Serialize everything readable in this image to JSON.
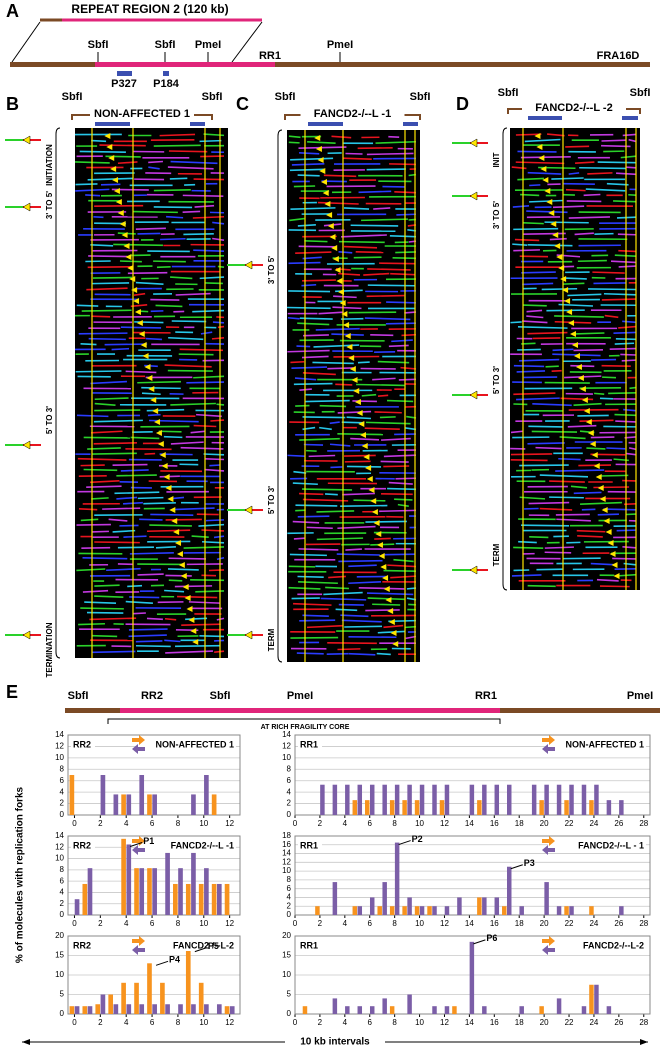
{
  "figure": {
    "panel_a": {
      "label": "A",
      "region": "REPEAT REGION 2 (120 kb)",
      "sites": [
        "SbfI",
        "SbfI",
        "PmeI",
        "RR1",
        "PmeI",
        "FRA16D"
      ],
      "probes": [
        "P327",
        "P184"
      ]
    },
    "panels": [
      {
        "label": "B",
        "title": "NON-AFFECTED 1",
        "sites": [
          "SbfI",
          "SbfI"
        ],
        "zones": [
          "INITIATION",
          "3' TO 5'",
          "5' TO 3'",
          "TERMINATION"
        ]
      },
      {
        "label": "C",
        "title": "FANCD2-/--L -1",
        "sites": [
          "SbfI",
          "SbfI"
        ],
        "zones": [
          "3' TO 5'",
          "5' TO 3'",
          "TERM"
        ]
      },
      {
        "label": "D",
        "title": "FANCD2-/--L -2",
        "sites": [
          "SbfI",
          "SbfI"
        ],
        "zones": [
          "INIT",
          "3' TO 5'",
          "5' TO 3'",
          "TERM"
        ]
      }
    ],
    "panel_e": {
      "label": "E",
      "map": [
        "SbfI",
        "RR2",
        "SbfI",
        "PmeI",
        "RR1",
        "PmeI"
      ],
      "core": "AT RICH FRAGILITY CORE",
      "y_label": "% of molecules with replication forks",
      "x_label": "10 kb intervals"
    }
  },
  "chart_data": [
    {
      "type": "bar",
      "region": "RR2",
      "title": "NON-AFFECTED 1",
      "x": [
        0,
        1,
        2,
        3,
        4,
        5,
        6,
        7,
        8,
        9,
        10,
        11,
        12
      ],
      "xlim": [
        -0.5,
        12.8
      ],
      "xticks": [
        0,
        2,
        4,
        6,
        8,
        10,
        12
      ],
      "ylim": [
        0,
        14
      ],
      "yticks": [
        0,
        2,
        4,
        6,
        8,
        10,
        12,
        14
      ],
      "grid": true,
      "series": [
        {
          "color": "#f7931e",
          "values": [
            7,
            0,
            0,
            0,
            3.6,
            0,
            3.6,
            0,
            0,
            0,
            0,
            3.6,
            0
          ]
        },
        {
          "color": "#7b5ea7",
          "values": [
            0,
            0,
            7,
            3.6,
            3.6,
            7,
            3.6,
            0,
            0,
            3.6,
            7,
            0,
            0
          ]
        }
      ],
      "annotations": []
    },
    {
      "type": "bar",
      "region": "RR1",
      "title": "NON-AFFECTED 1",
      "x": [
        1,
        2,
        3,
        4,
        5,
        6,
        7,
        8,
        9,
        10,
        11,
        12,
        13,
        14,
        15,
        16,
        17,
        18,
        19,
        20,
        21,
        22,
        23,
        24,
        25,
        26,
        27
      ],
      "xlim": [
        0,
        28.5
      ],
      "xticks": [
        0,
        2,
        4,
        6,
        8,
        10,
        12,
        14,
        16,
        18,
        20,
        22,
        24,
        26,
        28
      ],
      "ylim": [
        0,
        14
      ],
      "yticks": [
        0,
        2,
        4,
        6,
        8,
        10,
        12,
        14
      ],
      "grid": true,
      "series": [
        {
          "color": "#f7931e",
          "values": [
            0,
            0,
            0,
            0,
            2.6,
            2.6,
            0,
            2.6,
            2.6,
            2.6,
            0,
            2.6,
            0,
            0,
            2.6,
            0,
            0,
            0,
            0,
            2.6,
            0,
            2.6,
            0,
            2.6,
            0,
            0,
            0
          ]
        },
        {
          "color": "#7b5ea7",
          "values": [
            0,
            5.3,
            5.3,
            5.3,
            5.3,
            5.3,
            5.3,
            5.3,
            5.3,
            5.3,
            5.3,
            5.3,
            0,
            5.3,
            5.3,
            5.3,
            5.3,
            0,
            5.3,
            5.3,
            5.3,
            5.3,
            5.3,
            5.3,
            2.6,
            2.6,
            0
          ]
        }
      ],
      "annotations": []
    },
    {
      "type": "bar",
      "region": "RR2",
      "title": "FANCD2-/--L -1",
      "x": [
        0,
        1,
        2,
        3,
        4,
        5,
        6,
        7,
        8,
        9,
        10,
        11,
        12
      ],
      "xlim": [
        -0.5,
        12.8
      ],
      "xticks": [
        0,
        2,
        4,
        6,
        8,
        10,
        12
      ],
      "ylim": [
        0,
        14
      ],
      "yticks": [
        0,
        2,
        4,
        6,
        8,
        10,
        12,
        14
      ],
      "grid": true,
      "series": [
        {
          "color": "#f7931e",
          "values": [
            0,
            5.5,
            0,
            0,
            13.5,
            8.3,
            8.3,
            0,
            5.5,
            5.5,
            5.5,
            5.5,
            5.5
          ]
        },
        {
          "color": "#7b5ea7",
          "values": [
            2.8,
            8.3,
            0,
            0,
            12.5,
            8.3,
            8.3,
            11,
            8.3,
            11,
            8.3,
            5.5,
            0
          ]
        }
      ],
      "annotations": [
        {
          "text": "P1",
          "x": 4,
          "y": 12.5
        }
      ]
    },
    {
      "type": "bar",
      "region": "RR1",
      "title": "FANCD2-/--L - 1",
      "x": [
        1,
        2,
        3,
        4,
        5,
        6,
        7,
        8,
        9,
        10,
        11,
        12,
        13,
        14,
        15,
        16,
        17,
        18,
        19,
        20,
        21,
        22,
        23,
        24,
        25,
        26,
        27
      ],
      "xlim": [
        0,
        28.5
      ],
      "xticks": [
        0,
        2,
        4,
        6,
        8,
        10,
        12,
        14,
        16,
        18,
        20,
        22,
        24,
        26,
        28
      ],
      "ylim": [
        0,
        18
      ],
      "yticks": [
        0,
        2,
        4,
        6,
        8,
        10,
        12,
        14,
        16,
        18
      ],
      "grid": true,
      "series": [
        {
          "color": "#f7931e",
          "values": [
            0,
            2,
            0,
            0,
            2,
            0,
            2,
            2,
            2,
            2,
            2,
            0,
            0,
            0,
            4,
            0,
            2,
            0,
            0,
            0,
            0,
            2,
            0,
            2,
            0,
            0,
            0
          ]
        },
        {
          "color": "#7b5ea7",
          "values": [
            0,
            0,
            7.5,
            0,
            2,
            4,
            7.5,
            16.5,
            4,
            2,
            2,
            2,
            4,
            0,
            4,
            4,
            11,
            2,
            0,
            7.5,
            2,
            2,
            0,
            0,
            0,
            2,
            0
          ]
        }
      ],
      "annotations": [
        {
          "text": "P2",
          "x": 8,
          "y": 16.5
        },
        {
          "text": "P3",
          "x": 17,
          "y": 11
        }
      ]
    },
    {
      "type": "bar",
      "region": "RR2",
      "title": "FANCD2-/--L-2",
      "x": [
        0,
        1,
        2,
        3,
        4,
        5,
        6,
        7,
        8,
        9,
        10,
        11,
        12
      ],
      "xlim": [
        -0.5,
        12.8
      ],
      "xticks": [
        0,
        2,
        4,
        6,
        8,
        10,
        12
      ],
      "ylim": [
        0,
        20
      ],
      "yticks": [
        0,
        5,
        10,
        15,
        20
      ],
      "grid": true,
      "series": [
        {
          "color": "#f7931e",
          "values": [
            2,
            2,
            2.5,
            5,
            8,
            8,
            13,
            8,
            0,
            16.5,
            8,
            0,
            2
          ]
        },
        {
          "color": "#7b5ea7",
          "values": [
            2,
            2,
            5,
            2.5,
            2.5,
            2.5,
            2.5,
            2.5,
            2.5,
            2.5,
            2.5,
            2.5,
            2
          ]
        }
      ],
      "annotations": [
        {
          "text": "P4",
          "x": 6,
          "y": 13
        },
        {
          "text": "P5",
          "x": 9,
          "y": 16.5
        }
      ]
    },
    {
      "type": "bar",
      "region": "RR1",
      "title": "FANCD2-/--L-2",
      "x": [
        1,
        2,
        3,
        4,
        5,
        6,
        7,
        8,
        9,
        10,
        11,
        12,
        13,
        14,
        15,
        16,
        17,
        18,
        19,
        20,
        21,
        22,
        23,
        24,
        25,
        26,
        27
      ],
      "xlim": [
        0,
        28.5
      ],
      "xticks": [
        0,
        2,
        4,
        6,
        8,
        10,
        12,
        14,
        16,
        18,
        20,
        22,
        24,
        26,
        28
      ],
      "ylim": [
        0,
        20
      ],
      "yticks": [
        0,
        5,
        10,
        15,
        20
      ],
      "grid": true,
      "series": [
        {
          "color": "#f7931e",
          "values": [
            2,
            0,
            0,
            0,
            0,
            0,
            0,
            2,
            0,
            0,
            0,
            0,
            2,
            0,
            0,
            0,
            0,
            0,
            0,
            2,
            0,
            0,
            0,
            7.5,
            0,
            0,
            0
          ]
        },
        {
          "color": "#7b5ea7",
          "values": [
            0,
            0,
            4,
            2,
            2,
            2,
            4,
            0,
            5,
            0,
            2,
            2,
            0,
            18.5,
            2,
            0,
            0,
            2,
            0,
            0,
            4,
            0,
            2,
            7.5,
            2,
            0,
            0
          ]
        }
      ],
      "annotations": [
        {
          "text": "P6",
          "x": 14,
          "y": 18.5
        }
      ]
    }
  ]
}
